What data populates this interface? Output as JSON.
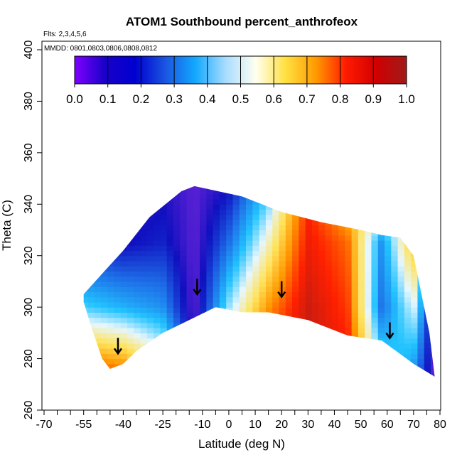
{
  "chart_data": {
    "type": "heatmap",
    "title": "ATOM1 Southbound percent_anthrofeox",
    "subtitle_flights": "Flts: 2,3,4,5,6",
    "subtitle_dates": "MMDD: 0801,0803,0806,0808,0812",
    "xlabel": "Latitude (deg N)",
    "ylabel": "Theta (C)",
    "xlim": [
      -70,
      80
    ],
    "ylim": [
      260,
      400
    ],
    "x_ticks": [
      "-70",
      "-55",
      "-40",
      "-25",
      "-10",
      "0",
      "10",
      "20",
      "30",
      "40",
      "50",
      "60",
      "70",
      "80"
    ],
    "x_tick_values": [
      -70,
      -55,
      -40,
      -25,
      -10,
      0,
      10,
      20,
      30,
      40,
      50,
      60,
      70,
      80
    ],
    "x_minor_ticks": [
      -65,
      -60,
      -50,
      -45,
      -35,
      -30,
      -20,
      -15,
      -5,
      5,
      15,
      25,
      35,
      45,
      55,
      65,
      75
    ],
    "y_ticks": [
      "260",
      "280",
      "300",
      "320",
      "340",
      "360",
      "380",
      "400"
    ],
    "y_tick_values": [
      260,
      280,
      300,
      320,
      340,
      360,
      380,
      400
    ],
    "colorbar": {
      "labels": [
        "0.0",
        "0.1",
        "0.2",
        "0.3",
        "0.4",
        "0.5",
        "0.6",
        "0.7",
        "0.8",
        "0.9",
        "1.0"
      ],
      "stops": [
        "#7f00ff",
        "#1a00c8",
        "#0000d0",
        "#1a55e0",
        "#12a8ff",
        "#a8dcff",
        "#fffff0",
        "#ffe040",
        "#ff9a00",
        "#ff1a00",
        "#d00000",
        "#a01a1a"
      ]
    },
    "fill_color_scale": [
      "#8a2be2",
      "#1010c0",
      "#1e6fe8",
      "#22c3ff",
      "#e6f6ff",
      "#ffe35a",
      "#ff9800",
      "#ff2000",
      "#aa1a1a"
    ],
    "region": {
      "boundary": [
        [
          -55,
          305
        ],
        [
          -48,
          313
        ],
        [
          -40,
          322
        ],
        [
          -30,
          335
        ],
        [
          -18,
          345
        ],
        [
          -13,
          347
        ],
        [
          5,
          343
        ],
        [
          20,
          337
        ],
        [
          35,
          333
        ],
        [
          50,
          330
        ],
        [
          58,
          328
        ],
        [
          65,
          327
        ],
        [
          70,
          320
        ],
        [
          72,
          310
        ],
        [
          76,
          290
        ],
        [
          78,
          273
        ],
        [
          70,
          278
        ],
        [
          58,
          287
        ],
        [
          45,
          289
        ],
        [
          30,
          295
        ],
        [
          15,
          298
        ],
        [
          5,
          298
        ],
        [
          -5,
          300
        ],
        [
          -15,
          295
        ],
        [
          -25,
          290
        ],
        [
          -35,
          283
        ],
        [
          -40,
          278
        ],
        [
          -45,
          276
        ],
        [
          -48,
          280
        ],
        [
          -52,
          292
        ],
        [
          -55,
          302
        ]
      ],
      "bands": [
        {
          "lat": -55,
          "values": [
            0.85,
            0.4,
            0.15,
            0.1
          ]
        },
        {
          "lat": -40,
          "values": [
            0.8,
            0.35,
            0.12,
            0.05
          ]
        },
        {
          "lat": -25,
          "values": [
            0.6,
            0.3,
            0.15,
            0.1
          ]
        },
        {
          "lat": -13,
          "values": [
            0.1,
            0.05,
            0.05,
            0.05
          ]
        },
        {
          "lat": 0,
          "values": [
            0.7,
            0.45,
            0.25,
            0.1
          ]
        },
        {
          "lat": 15,
          "values": [
            0.9,
            0.75,
            0.55,
            0.35
          ]
        },
        {
          "lat": 30,
          "values": [
            0.95,
            0.95,
            0.9,
            0.85
          ]
        },
        {
          "lat": 45,
          "values": [
            0.9,
            0.85,
            0.8,
            0.6
          ]
        },
        {
          "lat": 58,
          "values": [
            0.45,
            0.25,
            0.3,
            0.7
          ]
        },
        {
          "lat": 70,
          "values": [
            0.3,
            0.5,
            0.7,
            0.2
          ]
        },
        {
          "lat": 78,
          "values": [
            0.05,
            0.05,
            0.05,
            0.05
          ]
        }
      ]
    },
    "arrows": [
      {
        "lat": -42,
        "theta": 282
      },
      {
        "lat": -12,
        "theta": 305
      },
      {
        "lat": 20,
        "theta": 304
      },
      {
        "lat": 61,
        "theta": 288
      }
    ]
  }
}
